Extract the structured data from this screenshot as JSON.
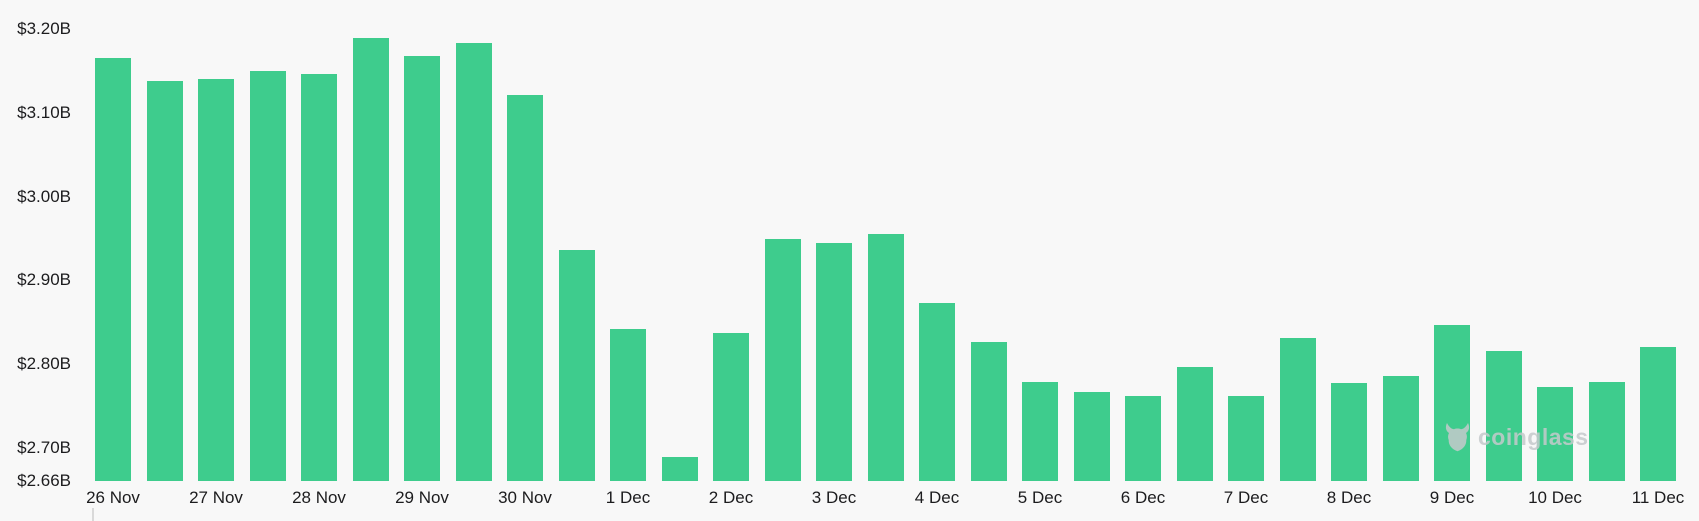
{
  "watermark": {
    "text": "coinglass",
    "color": "#c5cacc"
  },
  "chart_data": {
    "type": "bar",
    "grid": false,
    "legend": false,
    "background_color": "#f8f8f8",
    "bar_color": "#3ecc8d",
    "text_color": "#1c1c1e",
    "y_axis": {
      "unit": "USD billions",
      "tick_labels": [
        "$3.20B",
        "$3.10B",
        "$3.00B",
        "$2.90B",
        "$2.80B",
        "$2.70B",
        "$2.66B"
      ],
      "tick_values": [
        3.2,
        3.1,
        3.0,
        2.9,
        2.8,
        2.7,
        2.66
      ],
      "min": 2.66,
      "max": 3.235
    },
    "x_axis": {
      "tick_labels": [
        "26 Nov",
        "27 Nov",
        "28 Nov",
        "29 Nov",
        "30 Nov",
        "1 Dec",
        "2 Dec",
        "3 Dec",
        "4 Dec",
        "5 Dec",
        "6 Dec",
        "7 Dec",
        "8 Dec",
        "9 Dec",
        "10 Dec",
        "11 Dec"
      ],
      "bars_per_label": 2
    },
    "values": [
      3.166,
      3.138,
      3.141,
      3.15,
      3.147,
      3.19,
      3.168,
      3.184,
      3.122,
      2.936,
      2.842,
      2.689,
      2.837,
      2.949,
      2.945,
      2.955,
      2.873,
      2.826,
      2.778,
      2.766,
      2.762,
      2.796,
      2.762,
      2.831,
      2.777,
      2.786,
      2.846,
      2.815,
      2.772,
      2.778,
      2.82
    ]
  }
}
